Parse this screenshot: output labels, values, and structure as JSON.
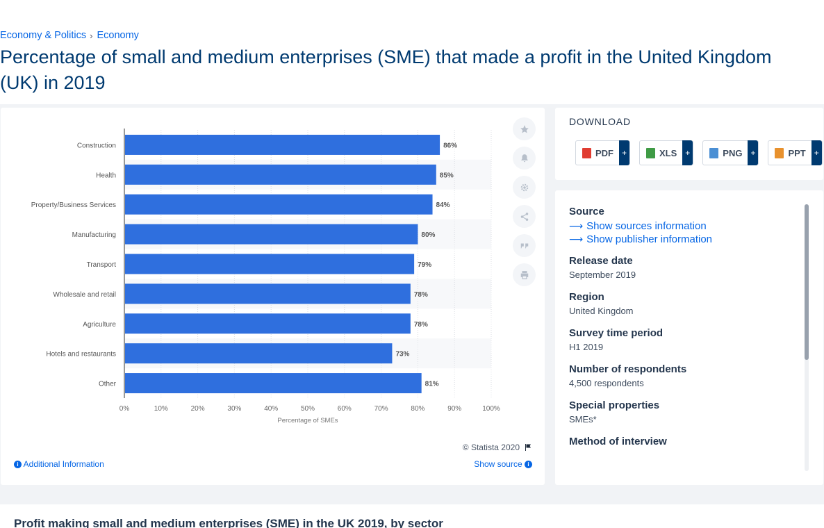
{
  "breadcrumb": {
    "items": [
      "Economy & Politics",
      "Economy"
    ],
    "separator": "›"
  },
  "title": "Percentage of small and medium enterprises (SME) that made a profit in the United Kingdom (UK) in 2019",
  "chart_data": {
    "type": "bar",
    "orientation": "horizontal",
    "categories": [
      "Construction",
      "Health",
      "Property/Business Services",
      "Manufacturing",
      "Transport",
      "Wholesale and retail",
      "Agriculture",
      "Hotels and restaurants",
      "Other"
    ],
    "values": [
      86,
      85,
      84,
      80,
      79,
      78,
      78,
      73,
      81
    ],
    "value_suffix": "%",
    "xlabel": "Percentage of SMEs",
    "xlim": [
      0,
      100
    ],
    "xticks": [
      "0%",
      "10%",
      "20%",
      "30%",
      "40%",
      "50%",
      "60%",
      "70%",
      "80%",
      "90%",
      "100%"
    ],
    "bar_color": "#2f6fde",
    "grid": true
  },
  "chart_footer": {
    "copyright": "© Statista 2020",
    "additional_info": "Additional Information",
    "show_source": "Show source"
  },
  "tools": [
    "star-icon",
    "bell-icon",
    "gear-icon",
    "share-icon",
    "quote-icon",
    "print-icon"
  ],
  "download": {
    "title": "DOWNLOAD",
    "buttons": [
      {
        "label": "PDF",
        "color": "#e03c31"
      },
      {
        "label": "XLS",
        "color": "#3f9b45"
      },
      {
        "label": "PNG",
        "color": "#4a8fd4"
      },
      {
        "label": "PPT",
        "color": "#e8912d"
      }
    ],
    "plus": "+"
  },
  "meta": {
    "source_label": "Source",
    "show_sources": "Show sources information",
    "show_publisher": "Show publisher information",
    "release_date_label": "Release date",
    "release_date": "September 2019",
    "region_label": "Region",
    "region": "United Kingdom",
    "survey_period_label": "Survey time period",
    "survey_period": "H1 2019",
    "respondents_label": "Number of respondents",
    "respondents": "4,500 respondents",
    "special_label": "Special properties",
    "special": "SMEs*",
    "method_label": "Method of interview"
  },
  "bottom_heading": "Profit making small and medium enterprises (SME) in the UK 2019, by sector"
}
